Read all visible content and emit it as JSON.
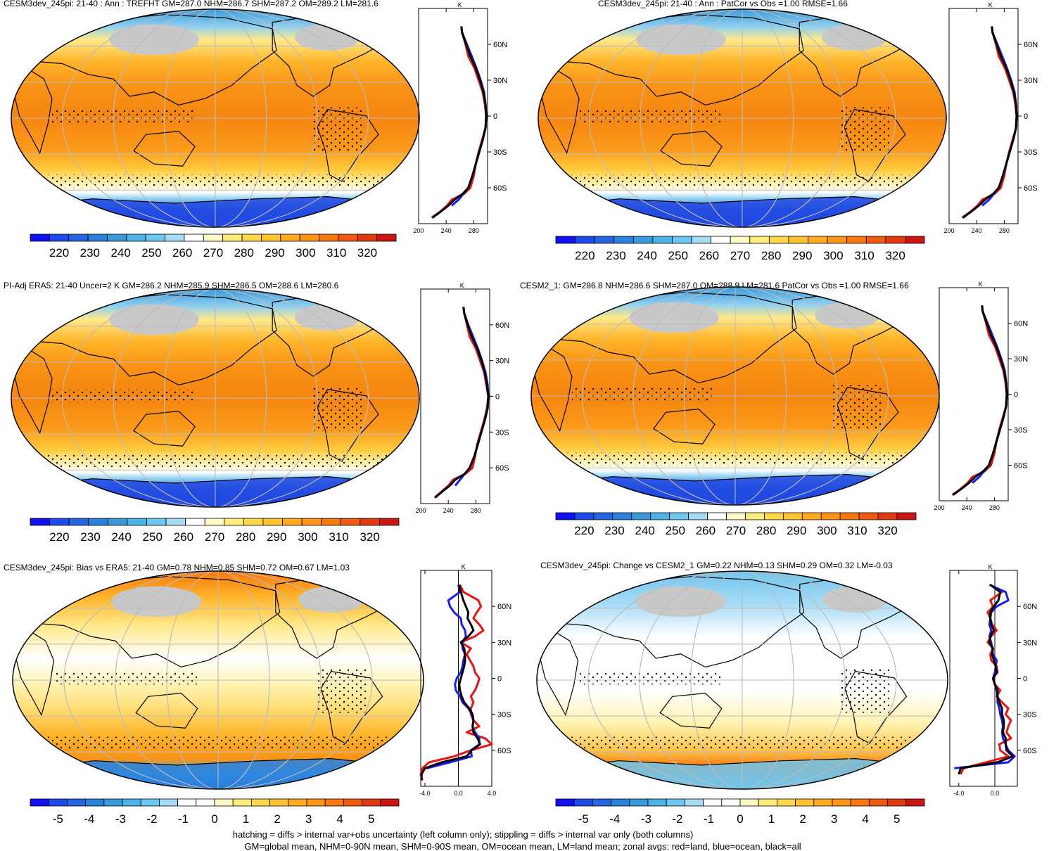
{
  "colors": {
    "ocean_line": "#1a1aff",
    "land_line": "#ee1111",
    "all_line": "#000000",
    "land_mask": "#c8c8c8",
    "abs_scale": [
      "#1010ee",
      "#1d4ae8",
      "#2565e0",
      "#2a80dd",
      "#3a9ad8",
      "#4db2e6",
      "#6fc6ef",
      "#a6dbf5",
      "#ffffff",
      "#fff9c8",
      "#ffec7a",
      "#ffd84a",
      "#ffc42e",
      "#ffaa20",
      "#ff9416",
      "#f7780e",
      "#ee5a10",
      "#e03a10",
      "#cc1515"
    ],
    "diff_scale": [
      "#1010ee",
      "#1d4ae8",
      "#2565e0",
      "#2a80dd",
      "#3a9ad8",
      "#4db2e6",
      "#6fc6ef",
      "#a6dbf5",
      "#ffffff",
      "#ffffff",
      "#fff9c8",
      "#ffec7a",
      "#ffd84a",
      "#ffc42e",
      "#ffaa20",
      "#ff9416",
      "#f7780e",
      "#ee5a10",
      "#e03a10",
      "#cc1515"
    ]
  },
  "panels": [
    {
      "title": "CESM3dev_245pi: 21-40 : Ann : TREFHT GM=287.0 NHM=286.7 SHM=287.2 OM=289.2 LM=281.6",
      "colorbar_labels": [
        "220",
        "230",
        "240",
        "250",
        "260",
        "270",
        "280",
        "290",
        "300",
        "310",
        "320"
      ],
      "zonal": {
        "unit": "K",
        "y_labels": [
          "60N",
          "30N",
          "0",
          "30S",
          "60S"
        ],
        "x_labels": [
          "200",
          "240",
          "280"
        ],
        "xlim": [
          200,
          300
        ],
        "lat": [
          75,
          70,
          60,
          50,
          40,
          30,
          20,
          10,
          0,
          -10,
          -20,
          -30,
          -40,
          -50,
          -60,
          -65,
          -70,
          -75,
          -80,
          -85
        ],
        "land": [
          262,
          263,
          268,
          272,
          281,
          287,
          293,
          296,
          298,
          297,
          292,
          287,
          283,
          280,
          275,
          266,
          248,
          241,
          231,
          219
        ],
        "ocean": [
          262,
          263,
          270,
          277,
          284,
          290,
          295,
          297,
          298,
          297,
          293,
          288,
          283,
          278,
          272,
          265,
          258,
          248,
          null,
          null
        ],
        "all": [
          262,
          263,
          269,
          275,
          283,
          289,
          294,
          297,
          298,
          297,
          293,
          288,
          283,
          278,
          272,
          264,
          252,
          243,
          232,
          220
        ]
      }
    },
    {
      "title": "CESM3dev_245pi: 21-40 : Ann : PatCor vs Obs =1.00 RMSE=1.66",
      "colorbar_labels": [
        "220",
        "230",
        "240",
        "250",
        "260",
        "270",
        "280",
        "290",
        "300",
        "310",
        "320"
      ],
      "zonal": {
        "unit": "K",
        "y_labels": [
          "60N",
          "30N",
          "0",
          "30S",
          "60S"
        ],
        "x_labels": [
          "200",
          "240",
          "280"
        ],
        "xlim": [
          200,
          300
        ],
        "lat": [
          75,
          70,
          60,
          50,
          40,
          30,
          20,
          10,
          0,
          -10,
          -20,
          -30,
          -40,
          -50,
          -60,
          -65,
          -70,
          -75,
          -80,
          -85
        ],
        "land": [
          262,
          263,
          268,
          272,
          281,
          287,
          293,
          296,
          298,
          297,
          292,
          287,
          283,
          280,
          275,
          266,
          248,
          241,
          231,
          219
        ],
        "ocean": [
          262,
          263,
          270,
          277,
          284,
          290,
          295,
          297,
          298,
          297,
          293,
          288,
          283,
          278,
          272,
          265,
          258,
          248,
          null,
          null
        ],
        "all": [
          262,
          263,
          269,
          275,
          283,
          289,
          294,
          297,
          298,
          297,
          293,
          288,
          283,
          278,
          272,
          264,
          252,
          243,
          232,
          220
        ]
      }
    },
    {
      "title": "PI-Adj ERA5: 21-40 Uncer=2 K GM=286.2 NHM=285.9 SHM=286.5 OM=288.6 LM=280.6",
      "colorbar_labels": [
        "220",
        "230",
        "240",
        "250",
        "260",
        "270",
        "280",
        "290",
        "300",
        "310",
        "320"
      ],
      "zonal": {
        "unit": "K",
        "y_labels": [
          "60N",
          "30N",
          "0",
          "30S",
          "60S"
        ],
        "x_labels": [
          "200",
          "240",
          "280"
        ],
        "xlim": [
          200,
          300
        ],
        "lat": [
          75,
          70,
          60,
          50,
          40,
          30,
          20,
          10,
          0,
          -10,
          -20,
          -30,
          -40,
          -50,
          -60,
          -65,
          -70,
          -75,
          -80,
          -85
        ],
        "land": [
          262,
          263,
          267,
          271,
          280,
          286,
          292,
          295,
          298,
          296,
          292,
          287,
          282,
          279,
          275,
          265,
          247,
          240,
          230,
          220
        ],
        "ocean": [
          262,
          263,
          269,
          276,
          283,
          289,
          294,
          297,
          298,
          297,
          293,
          288,
          283,
          278,
          271,
          264,
          257,
          250,
          null,
          null
        ],
        "all": [
          262,
          263,
          268,
          274,
          282,
          288,
          293,
          296,
          298,
          297,
          293,
          288,
          283,
          278,
          271,
          264,
          250,
          242,
          231,
          221
        ]
      }
    },
    {
      "title": "CESM2_1: GM=286.8 NHM=286.6 SHM=287.0 OM=288.9 LM=281.6 PatCor vs Obs =1.00 RMSE=1.66",
      "colorbar_labels": [
        "220",
        "230",
        "240",
        "250",
        "260",
        "270",
        "280",
        "290",
        "300",
        "310",
        "320"
      ],
      "zonal": {
        "unit": "K",
        "y_labels": [
          "60N",
          "30N",
          "0",
          "30S",
          "60S"
        ],
        "x_labels": [
          "200",
          "240",
          "280"
        ],
        "xlim": [
          200,
          300
        ],
        "lat": [
          75,
          70,
          60,
          50,
          40,
          30,
          20,
          10,
          0,
          -10,
          -20,
          -30,
          -40,
          -50,
          -60,
          -65,
          -70,
          -75,
          -80,
          -85
        ],
        "land": [
          262,
          263,
          268,
          272,
          281,
          287,
          293,
          296,
          298,
          297,
          292,
          287,
          283,
          280,
          275,
          266,
          248,
          241,
          231,
          219
        ],
        "ocean": [
          262,
          263,
          270,
          277,
          284,
          290,
          295,
          297,
          298,
          297,
          293,
          288,
          283,
          278,
          272,
          265,
          258,
          248,
          null,
          null
        ],
        "all": [
          262,
          263,
          269,
          275,
          283,
          289,
          294,
          297,
          298,
          297,
          293,
          288,
          283,
          278,
          272,
          264,
          252,
          243,
          232,
          220
        ]
      }
    },
    {
      "title": "CESM3dev_245pi: Bias vs ERA5: 21-40 GM=0.78 NHM=0.85 SHM=0.72 OM=0.67 LM=1.03",
      "colorbar_labels": [
        "-5",
        "-4",
        "-3",
        "-2",
        "-1",
        "0",
        "1",
        "2",
        "3",
        "4",
        "5"
      ],
      "zonal": {
        "unit": "K",
        "y_labels": [
          "60N",
          "30N",
          "0",
          "30S",
          "60S"
        ],
        "x_labels": [
          "-4.0",
          "0.0",
          "4.0"
        ],
        "xlim": [
          -4.5,
          4.0
        ],
        "lat": [
          78,
          72,
          65,
          60,
          55,
          50,
          45,
          40,
          35,
          30,
          25,
          20,
          15,
          10,
          5,
          0,
          -5,
          -10,
          -15,
          -20,
          -25,
          -30,
          -35,
          -40,
          -45,
          -50,
          -55,
          -60,
          -65,
          -70,
          -75,
          -80,
          -85
        ],
        "land": [
          0.2,
          0.6,
          2.4,
          2.7,
          2.2,
          1.8,
          2.5,
          3.0,
          2.0,
          0.3,
          1.5,
          1.0,
          1.4,
          1.8,
          2.0,
          2.5,
          2.3,
          2.0,
          1.5,
          1.8,
          1.5,
          1.5,
          1.8,
          2.5,
          1.0,
          3.2,
          4.0,
          1.5,
          -0.5,
          -3.5,
          -4.3,
          -4.5,
          -4.3
        ],
        "ocean": [
          0.0,
          0.2,
          -1.2,
          -1.0,
          -0.5,
          0.3,
          0.4,
          0.8,
          0.9,
          0.5,
          0.5,
          0.8,
          0.6,
          0.5,
          0.3,
          -0.2,
          -0.4,
          -0.3,
          0.2,
          0.5,
          1.2,
          1.6,
          1.8,
          1.7,
          2.0,
          2.5,
          2.5,
          1.5,
          1.6,
          -1.0,
          -3.8,
          null,
          null
        ],
        "all": [
          0.1,
          0.3,
          0.6,
          0.9,
          1.2,
          1.1,
          1.5,
          1.8,
          1.2,
          0.3,
          0.7,
          0.8,
          0.8,
          0.7,
          0.5,
          0.3,
          0.1,
          0.2,
          0.4,
          0.7,
          1.3,
          1.7,
          1.8,
          1.7,
          1.8,
          2.3,
          2.6,
          1.6,
          1.0,
          -2.0,
          -4.0,
          -4.4,
          -4.4
        ]
      }
    },
    {
      "title": "CESM3dev_245pi: Change vs CESM2_1 GM=0.22 NHM=0.13 SHM=0.29 OM=0.32 LM=-0.03",
      "colorbar_labels": [
        "-5",
        "-4",
        "-3",
        "-2",
        "-1",
        "0",
        "1",
        "2",
        "3",
        "4",
        "5"
      ],
      "zonal": {
        "unit": "K",
        "y_labels": [
          "60N",
          "30N",
          "0",
          "30S",
          "60S"
        ],
        "x_labels": [
          "-4.0",
          "0.0"
        ],
        "xlim": [
          -5.0,
          2.5
        ],
        "lat": [
          78,
          72,
          65,
          60,
          55,
          50,
          45,
          40,
          35,
          30,
          25,
          20,
          15,
          10,
          5,
          0,
          -5,
          -10,
          -15,
          -20,
          -25,
          -30,
          -35,
          -40,
          -45,
          -50,
          -55,
          -60,
          -65,
          -70,
          -75,
          -80
        ],
        "land": [
          -0.5,
          0.8,
          -0.5,
          -0.2,
          -0.8,
          -0.5,
          -0.3,
          0.2,
          -0.4,
          -0.8,
          -0.2,
          -0.5,
          -0.4,
          0.2,
          0.3,
          -0.2,
          0.0,
          0.6,
          0.2,
          0.8,
          1.5,
          1.2,
          1.8,
          1.5,
          1.3,
          1.8,
          0.5,
          0.6,
          1.5,
          -1.0,
          -3.5,
          -3.8
        ],
        "ocean": [
          -0.6,
          1.2,
          1.5,
          0.2,
          -0.4,
          -0.5,
          -0.6,
          -0.4,
          -0.6,
          -0.4,
          -0.3,
          -0.2,
          0.2,
          0.1,
          0.0,
          -0.2,
          0.0,
          0.2,
          0.3,
          0.3,
          0.5,
          0.6,
          0.8,
          0.9,
          0.8,
          0.9,
          1.2,
          1.5,
          2.2,
          1.5,
          -4.5,
          null
        ],
        "all": [
          -0.5,
          0.6,
          0.4,
          -0.1,
          -0.5,
          -0.5,
          -0.4,
          -0.1,
          -0.5,
          -0.6,
          -0.2,
          -0.3,
          -0.1,
          0.1,
          0.2,
          -0.2,
          0.0,
          0.3,
          0.3,
          0.5,
          0.8,
          0.8,
          1.0,
          1.0,
          0.9,
          1.2,
          1.2,
          1.3,
          2.0,
          0.3,
          -3.8,
          -4.0
        ]
      }
    }
  ],
  "footer": {
    "line1": "hatching = diffs > internal var+obs uncertainty (left column only); stippling = diffs > internal var only (both columns)",
    "line2": "GM=global mean, NHM=0-90N mean, SHM=0-90S mean, OM=ocean mean, LM=land mean; zonal avgs: red=land, blue=ocean, black=all"
  }
}
